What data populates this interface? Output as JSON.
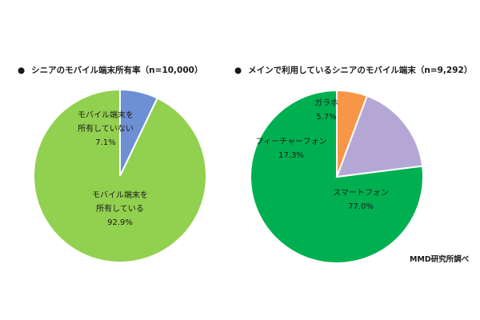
{
  "chart_data": [
    {
      "type": "pie",
      "title": "シニアのモバイル端末所有率（n=10,000）",
      "slices": [
        {
          "label_lines": [
            "モバイル端末を",
            "所有している"
          ],
          "value": 92.9,
          "value_label": "92.9%",
          "color": "#92d050"
        },
        {
          "label_lines": [
            "モバイル端末を",
            "所有していない"
          ],
          "value": 7.1,
          "value_label": "7.1%",
          "color": "#6d8fd4"
        }
      ]
    },
    {
      "type": "pie",
      "title": "メインで利用しているシニアのモバイル端末（n=9,292）",
      "slices": [
        {
          "label_lines": [
            "スマートフォン"
          ],
          "value": 77.0,
          "value_label": "77.0%",
          "color": "#00b050"
        },
        {
          "label_lines": [
            "フィーチャーフォン"
          ],
          "value": 17.3,
          "value_label": "17.3%",
          "color": "#b4a7d6"
        },
        {
          "label_lines": [
            "ガラホ"
          ],
          "value": 5.7,
          "value_label": "5.7%",
          "color": "#f79646"
        }
      ]
    }
  ],
  "bullet": "●",
  "source": "MMD研究所調べ"
}
